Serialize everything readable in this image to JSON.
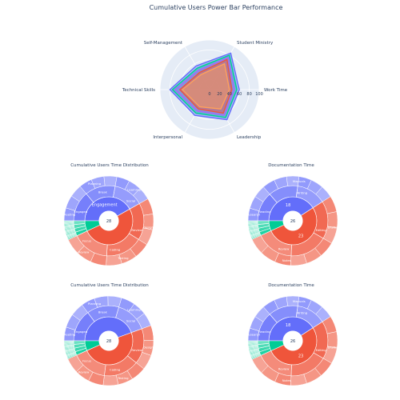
{
  "page": {
    "title": "Cumulative Users Power Bar Performance"
  },
  "colors": {
    "polar_bg": "#e5ecf6",
    "blue": "#636efa",
    "red": "#ef553b",
    "green": "#00cc96",
    "purple": "#ab63fa",
    "orange": "#ffa15a",
    "text": "#2a3f5f"
  },
  "chart_data": [
    {
      "type": "radar",
      "categories": [
        "Work Time",
        "Student Ministry",
        "Self-Management",
        "Technical Skills",
        "Interpersonal",
        "Leadership"
      ],
      "radial_ticks": [
        "0",
        "20",
        "40",
        "60",
        "80",
        "100"
      ],
      "radial_range": [
        0,
        100
      ],
      "series": [
        {
          "values": [
            60,
            85,
            55,
            80,
            60,
            70
          ],
          "color": "#636efa"
        },
        {
          "values": [
            55,
            80,
            50,
            75,
            55,
            65
          ],
          "color": "#00cc96"
        },
        {
          "values": [
            50,
            75,
            45,
            70,
            50,
            60
          ],
          "color": "#ab63fa"
        },
        {
          "values": [
            45,
            70,
            40,
            60,
            45,
            55
          ],
          "color": "#ef553b"
        },
        {
          "values": [
            40,
            60,
            35,
            55,
            40,
            45
          ],
          "color": "#ffa15a"
        }
      ]
    },
    {
      "type": "sunburst",
      "title": "Cumulative Users Time Distribution",
      "center": "28",
      "ring1": [
        {
          "label": "Engagement",
          "value": 18,
          "color": "#636efa"
        },
        {
          "label": "",
          "value": 22,
          "color": "#ef553b"
        },
        {
          "label": "",
          "value": 3,
          "color": "#00cc96"
        }
      ],
      "ring2_labels": [
        "Engaged",
        "Break",
        "Social",
        "Review",
        "Coding",
        "Focus"
      ],
      "ring3_labels": [
        "Meeting",
        "Planning",
        "Learning",
        "Design",
        "Testing",
        "Review"
      ]
    },
    {
      "type": "sunburst",
      "title": "Documentation Time",
      "center": "26",
      "ring1": [
        {
          "label": "18",
          "value": 18,
          "color": "#636efa"
        },
        {
          "label": "23",
          "value": 23,
          "color": "#ef553b"
        },
        {
          "label": "",
          "value": 3,
          "color": "#00cc96"
        }
      ],
      "ring2_labels": [
        "Reading",
        "Writing",
        "Editing",
        "Review"
      ],
      "ring3_labels": [
        "Research",
        "Manuals",
        "Drafts",
        "Notes"
      ]
    },
    {
      "type": "sunburst",
      "title": "Cumulative Users Time Distribution",
      "center": "28",
      "ring1": [
        {
          "label": "",
          "value": 20,
          "color": "#636efa"
        },
        {
          "label": "",
          "value": 22,
          "color": "#ef553b"
        },
        {
          "label": "",
          "value": 3,
          "color": "#00cc96"
        }
      ],
      "ring2_labels": [
        "Engaged",
        "Break",
        "Social",
        "Review",
        "Coding",
        "Focus"
      ],
      "ring3_labels": [
        "Meeting",
        "Planning",
        "Learning",
        "Design",
        "Testing",
        "Review"
      ]
    },
    {
      "type": "sunburst",
      "title": "Documentation Time",
      "center": "26",
      "ring1": [
        {
          "label": "18",
          "value": 18,
          "color": "#636efa"
        },
        {
          "label": "23",
          "value": 23,
          "color": "#ef553b"
        },
        {
          "label": "",
          "value": 3,
          "color": "#00cc96"
        }
      ],
      "ring2_labels": [
        "Reading",
        "Writing",
        "Editing",
        "Review"
      ],
      "ring3_labels": [
        "Research",
        "Manuals",
        "Drafts",
        "Notes"
      ]
    }
  ]
}
